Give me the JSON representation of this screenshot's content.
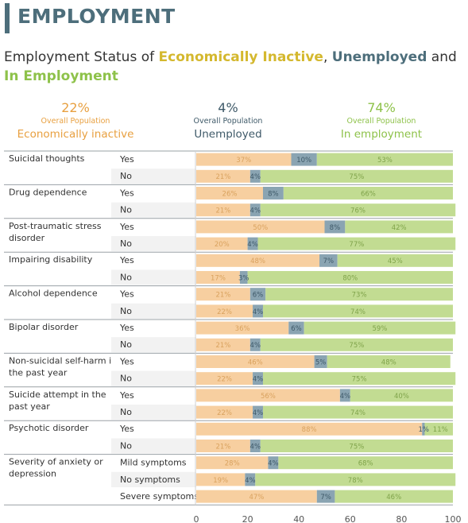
{
  "header": {
    "title": "EMPLOYMENT"
  },
  "subtitle": {
    "prefix": "Employment Status of ",
    "inactive": "Economically Inactive",
    "sep1": ", ",
    "unemployed": "Unemployed",
    "sep2": " and ",
    "employed": "In Employment"
  },
  "summary": {
    "inactive": {
      "pct": "22%",
      "sub": "Overall Population",
      "label": "Economically inactive"
    },
    "unemployed": {
      "pct": "4%",
      "sub": "Overall Population",
      "label": "Unemployed"
    },
    "employed": {
      "pct": "74%",
      "sub": "Overall Population",
      "label": "In employment"
    }
  },
  "colors": {
    "inactive": "#f7cfa0",
    "inactive_text": "#d9a25e",
    "unemployed": "#8aa4b2",
    "unemployed_text": "#3e5968",
    "employed": "#c2dc92",
    "employed_text": "#7fa34a",
    "header": "#4d6e7b"
  },
  "chart_data": {
    "type": "bar",
    "stacked": true,
    "orientation": "horizontal",
    "xlim": [
      0,
      100
    ],
    "xticks": [
      "0",
      "20",
      "40",
      "60",
      "80",
      "100"
    ],
    "series_keys": [
      "inactive",
      "unemployed",
      "employed"
    ],
    "groups": [
      {
        "label": [
          "Suicidal thoughts"
        ],
        "rows": [
          {
            "label": "Yes",
            "values": [
              37,
              10,
              53
            ]
          },
          {
            "label": "No",
            "values": [
              21,
              4,
              75
            ]
          }
        ]
      },
      {
        "label": [
          "Drug dependence"
        ],
        "rows": [
          {
            "label": "Yes",
            "values": [
              26,
              8,
              66
            ]
          },
          {
            "label": "No",
            "values": [
              21,
              4,
              76
            ]
          }
        ]
      },
      {
        "label": [
          "Post-traumatic stress",
          "disorder"
        ],
        "rows": [
          {
            "label": "Yes",
            "values": [
              50,
              8,
              42
            ]
          },
          {
            "label": "No",
            "values": [
              20,
              4,
              77
            ]
          }
        ]
      },
      {
        "label": [
          "Impairing disability"
        ],
        "rows": [
          {
            "label": "Yes",
            "values": [
              48,
              7,
              45
            ]
          },
          {
            "label": "No",
            "values": [
              17,
              3,
              80
            ]
          }
        ]
      },
      {
        "label": [
          "Alcohol dependence"
        ],
        "rows": [
          {
            "label": "Yes",
            "values": [
              21,
              6,
              73
            ]
          },
          {
            "label": "No",
            "values": [
              22,
              4,
              74
            ]
          }
        ]
      },
      {
        "label": [
          "Bipolar disorder"
        ],
        "rows": [
          {
            "label": "Yes",
            "values": [
              36,
              6,
              59
            ]
          },
          {
            "label": "No",
            "values": [
              21,
              4,
              75
            ]
          }
        ]
      },
      {
        "label": [
          "Non-suicidal self-harm in",
          "the past year"
        ],
        "rows": [
          {
            "label": "Yes",
            "values": [
              46,
              5,
              48
            ]
          },
          {
            "label": "No",
            "values": [
              22,
              4,
              75
            ]
          }
        ]
      },
      {
        "label": [
          "Suicide attempt in the",
          "past year"
        ],
        "rows": [
          {
            "label": "Yes",
            "values": [
              56,
              4,
              40
            ]
          },
          {
            "label": "No",
            "values": [
              22,
              4,
              74
            ]
          }
        ]
      },
      {
        "label": [
          "Psychotic disorder"
        ],
        "rows": [
          {
            "label": "Yes",
            "values": [
              88,
              1,
              11
            ]
          },
          {
            "label": "No",
            "values": [
              21,
              4,
              75
            ]
          }
        ]
      },
      {
        "label": [
          "Severity of anxiety or",
          "depression"
        ],
        "rows": [
          {
            "label": "Mild symptoms",
            "values": [
              28,
              4,
              68
            ]
          },
          {
            "label": "No symptoms",
            "values": [
              19,
              4,
              78
            ]
          },
          {
            "label": "Severe symptoms",
            "values": [
              47,
              7,
              46
            ]
          }
        ]
      }
    ]
  }
}
